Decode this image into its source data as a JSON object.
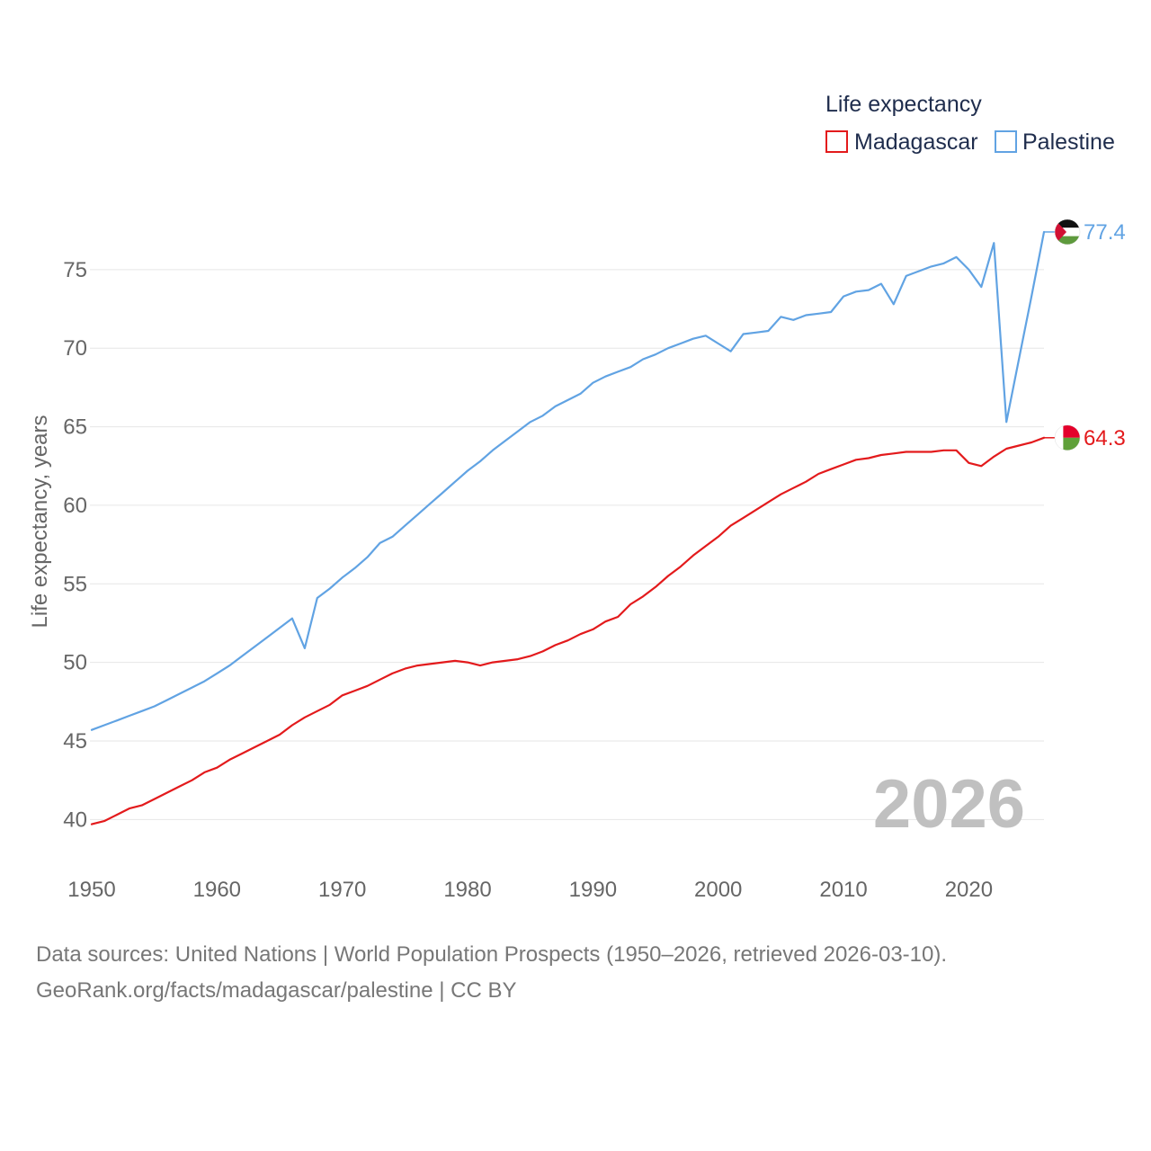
{
  "chart_data": {
    "type": "line",
    "legend_title": "Life expectancy",
    "ylabel": "Life expectancy, years",
    "xlabel": "",
    "xlim": [
      1950,
      2026
    ],
    "ylim": [
      37.5,
      79
    ],
    "x_ticks": [
      1950,
      1960,
      1970,
      1980,
      1990,
      2000,
      2010,
      2020
    ],
    "y_ticks": [
      40,
      45,
      50,
      55,
      60,
      65,
      70,
      75
    ],
    "legend_position": "top-right",
    "year_watermark": "2026",
    "series": [
      {
        "name": "Madagascar",
        "color": "#e31a1c",
        "end_label": "64.3",
        "flag": "madagascar-flag",
        "x": [
          1950,
          1951,
          1952,
          1953,
          1954,
          1955,
          1956,
          1957,
          1958,
          1959,
          1960,
          1961,
          1962,
          1963,
          1964,
          1965,
          1966,
          1967,
          1968,
          1969,
          1970,
          1971,
          1972,
          1973,
          1974,
          1975,
          1976,
          1977,
          1978,
          1979,
          1980,
          1981,
          1982,
          1983,
          1984,
          1985,
          1986,
          1987,
          1988,
          1989,
          1990,
          1991,
          1992,
          1993,
          1994,
          1995,
          1996,
          1997,
          1998,
          1999,
          2000,
          2001,
          2002,
          2003,
          2004,
          2005,
          2006,
          2007,
          2008,
          2009,
          2010,
          2011,
          2012,
          2013,
          2014,
          2015,
          2016,
          2017,
          2018,
          2019,
          2020,
          2021,
          2022,
          2023,
          2024,
          2025,
          2026
        ],
        "values": [
          39.7,
          39.9,
          40.3,
          40.7,
          40.9,
          41.3,
          41.7,
          42.1,
          42.5,
          43.0,
          43.3,
          43.8,
          44.2,
          44.6,
          45.0,
          45.4,
          46.0,
          46.5,
          46.9,
          47.3,
          47.9,
          48.2,
          48.5,
          48.9,
          49.3,
          49.6,
          49.8,
          49.9,
          50.0,
          50.1,
          50.0,
          49.8,
          50.0,
          50.1,
          50.2,
          50.4,
          50.7,
          51.1,
          51.4,
          51.8,
          52.1,
          52.6,
          52.9,
          53.7,
          54.2,
          54.8,
          55.5,
          56.1,
          56.8,
          57.4,
          58.0,
          58.7,
          59.2,
          59.7,
          60.2,
          60.7,
          61.1,
          61.5,
          62.0,
          62.3,
          62.6,
          62.9,
          63.0,
          63.2,
          63.3,
          63.4,
          63.4,
          63.4,
          63.5,
          63.5,
          62.7,
          62.5,
          63.1,
          63.6,
          63.8,
          64.0,
          64.3
        ]
      },
      {
        "name": "Palestine",
        "color": "#61a3e3",
        "end_label": "77.4",
        "flag": "palestine-flag",
        "x": [
          1950,
          1951,
          1952,
          1953,
          1954,
          1955,
          1956,
          1957,
          1958,
          1959,
          1960,
          1961,
          1962,
          1963,
          1964,
          1965,
          1966,
          1967,
          1968,
          1969,
          1970,
          1971,
          1972,
          1973,
          1974,
          1975,
          1976,
          1977,
          1978,
          1979,
          1980,
          1981,
          1982,
          1983,
          1984,
          1985,
          1986,
          1987,
          1988,
          1989,
          1990,
          1991,
          1992,
          1993,
          1994,
          1995,
          1996,
          1997,
          1998,
          1999,
          2000,
          2001,
          2002,
          2003,
          2004,
          2005,
          2006,
          2007,
          2008,
          2009,
          2010,
          2011,
          2012,
          2013,
          2014,
          2015,
          2016,
          2017,
          2018,
          2019,
          2020,
          2021,
          2022,
          2023,
          2024,
          2025,
          2026
        ],
        "values": [
          45.7,
          46.0,
          46.3,
          46.6,
          46.9,
          47.2,
          47.6,
          48.0,
          48.4,
          48.8,
          49.3,
          49.8,
          50.4,
          51.0,
          51.6,
          52.2,
          52.8,
          50.9,
          54.1,
          54.7,
          55.4,
          56.0,
          56.7,
          57.6,
          58.0,
          58.7,
          59.4,
          60.1,
          60.8,
          61.5,
          62.2,
          62.8,
          63.5,
          64.1,
          64.7,
          65.3,
          65.7,
          66.3,
          66.7,
          67.1,
          67.8,
          68.2,
          68.5,
          68.8,
          69.3,
          69.6,
          70.0,
          70.3,
          70.6,
          70.8,
          70.3,
          69.8,
          70.9,
          71.0,
          71.1,
          72.0,
          71.8,
          72.1,
          72.2,
          72.3,
          73.3,
          73.6,
          73.7,
          74.1,
          72.8,
          74.6,
          74.9,
          75.2,
          75.4,
          75.8,
          75.0,
          73.9,
          76.7,
          65.3,
          69.3,
          73.3,
          77.4
        ]
      }
    ]
  },
  "footer": {
    "line1": "Data sources: United Nations | World Population Prospects (1950–2026, retrieved 2026-03-10).",
    "line2": "GeoRank.org/facts/madagascar/palestine | CC BY"
  }
}
